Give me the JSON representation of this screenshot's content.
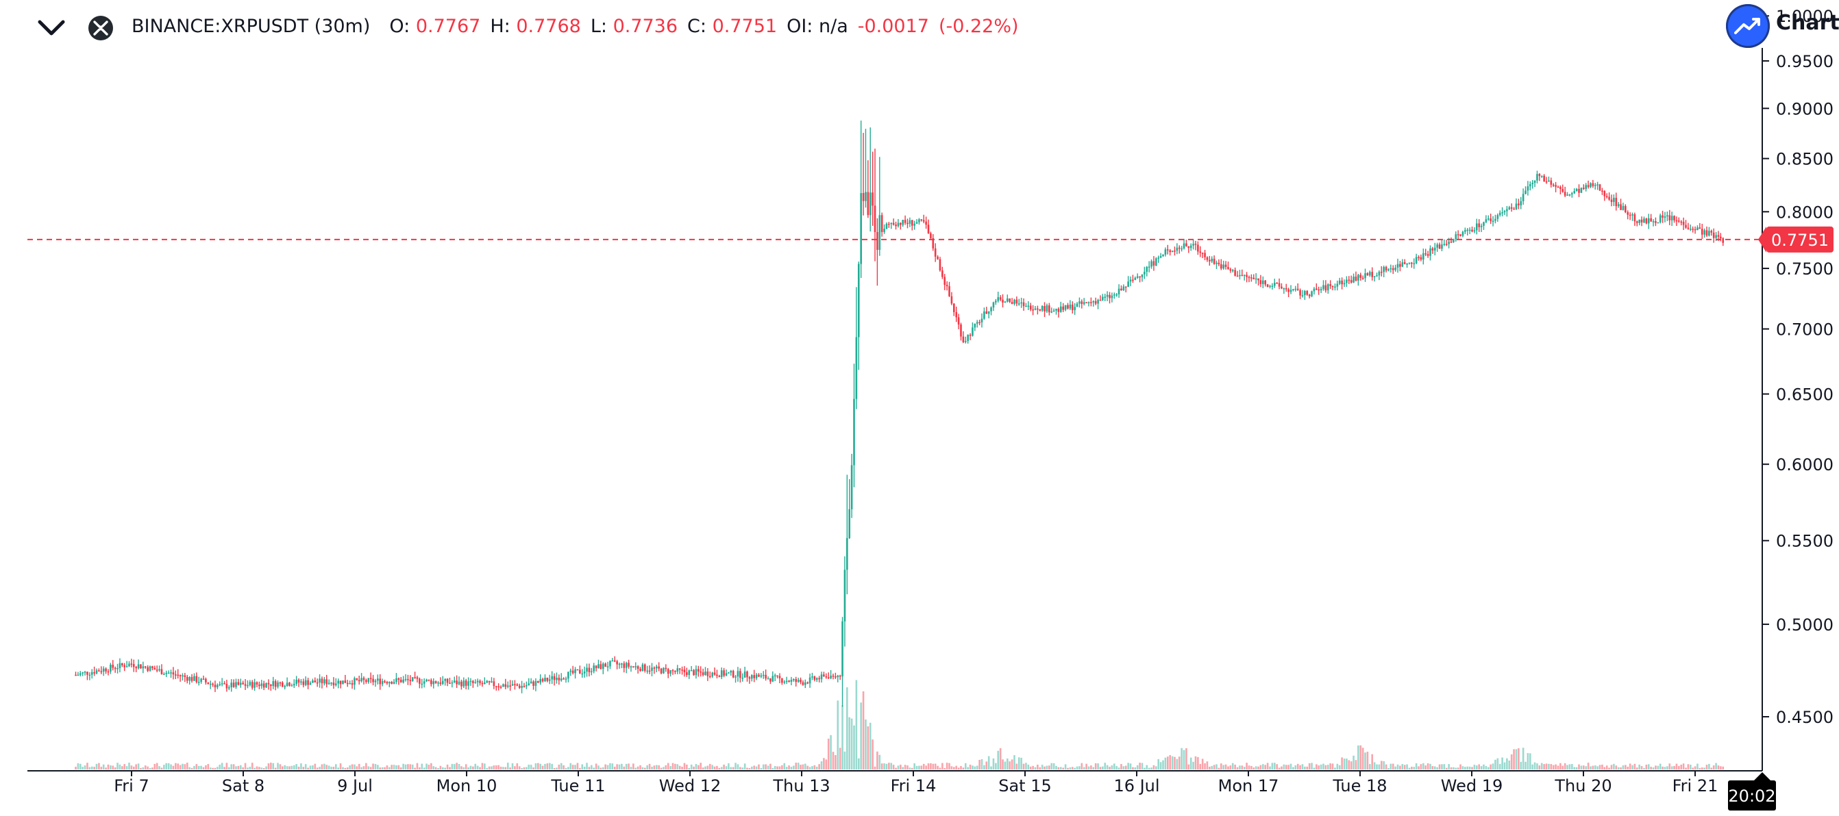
{
  "legend": {
    "symbol": "BINANCE:XRPUSDT (30m)",
    "open_label": "O:",
    "open": "0.7767",
    "high_label": "H:",
    "high": "0.7768",
    "low_label": "L:",
    "low": "0.7736",
    "close_label": "C:",
    "close": "0.7751",
    "oi_label": "OI:",
    "oi": "n/a",
    "change": "-0.0017",
    "change_pct": "(-0.22%)"
  },
  "brand": {
    "text": "Charts"
  },
  "colors": {
    "up": "#22ab94",
    "down": "#f23645",
    "axis": "#131722",
    "price_line": "#f23645"
  },
  "icons": {
    "collapse": "chevron-down-icon",
    "symbol": "xrp-logo-icon",
    "brand": "trend-up-icon"
  },
  "chart_data": {
    "type": "candlestick",
    "interval": "30m",
    "y_scale": "log",
    "y_ticks": [
      "0.4500",
      "0.5000",
      "0.5500",
      "0.6000",
      "0.6500",
      "0.7000",
      "0.7500",
      "0.8000",
      "0.8500",
      "0.9000",
      "0.9500",
      "1.0000"
    ],
    "y_tick_values": [
      0.45,
      0.5,
      0.55,
      0.6,
      0.65,
      0.7,
      0.75,
      0.8,
      0.85,
      0.9,
      0.95,
      1.0
    ],
    "x_ticks": [
      "Fri 7",
      "Sat 8",
      "9 Jul",
      "Mon 10",
      "Tue 11",
      "Wed 12",
      "Thu 13",
      "Fri 14",
      "Sat 15",
      "16 Jul",
      "Mon 17",
      "Tue 18",
      "Wed 19",
      "Thu 20",
      "Fri 21"
    ],
    "current_price": 0.7751,
    "current_price_label": "0.7751",
    "countdown": "20:02",
    "price_path": {
      "t": [
        0,
        0.5,
        1.3,
        2.0,
        3.0,
        4.0,
        4.8,
        5.3,
        6.0,
        6.5,
        6.85,
        6.95,
        7.02,
        7.08,
        7.15,
        7.3,
        7.6,
        7.95,
        8.25,
        8.45,
        8.8,
        9.3,
        9.8,
        10.0,
        10.2,
        10.4,
        11.0,
        11.4,
        11.7,
        12.0,
        12.5,
        12.9,
        13.1,
        13.35,
        13.6,
        14.0,
        14.25,
        14.5,
        14.75
      ],
      "price": [
        0.472,
        0.478,
        0.466,
        0.468,
        0.469,
        0.466,
        0.478,
        0.474,
        0.472,
        0.468,
        0.473,
        0.6,
        0.8,
        0.82,
        0.78,
        0.79,
        0.79,
        0.69,
        0.725,
        0.72,
        0.715,
        0.727,
        0.767,
        0.77,
        0.755,
        0.745,
        0.728,
        0.74,
        0.748,
        0.758,
        0.785,
        0.805,
        0.835,
        0.815,
        0.825,
        0.79,
        0.795,
        0.785,
        0.7751
      ]
    },
    "volume": {
      "baseline_max": 8,
      "spike_t": [
        6.9,
        7.0,
        8.3,
        9.9,
        11.5,
        12.9
      ]
    }
  }
}
